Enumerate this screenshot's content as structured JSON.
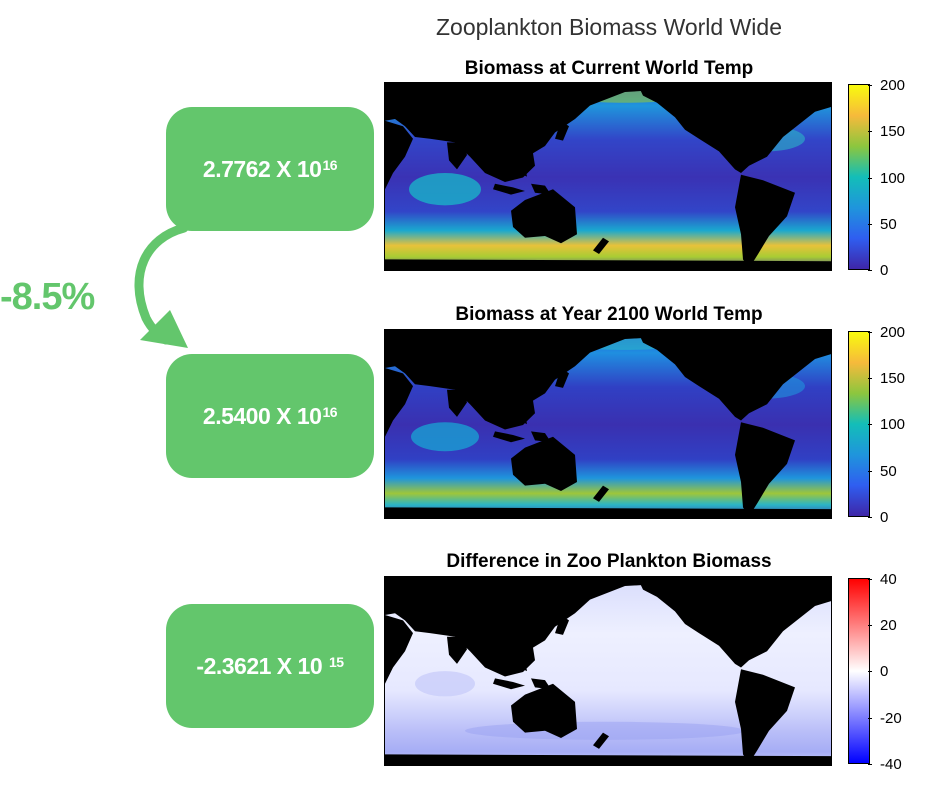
{
  "figure": {
    "title": "Zooplankton Biomass World Wide"
  },
  "panels": [
    {
      "title": "Biomass at Current World Temp",
      "colormap": "parula",
      "colorbar_ticks": [
        "200",
        "150",
        "100",
        "50",
        "0"
      ],
      "colorbar_range": [
        0,
        200
      ]
    },
    {
      "title": "Biomass at Year 2100 World Temp",
      "colormap": "parula",
      "colorbar_ticks": [
        "200",
        "150",
        "100",
        "50",
        "0"
      ],
      "colorbar_range": [
        0,
        200
      ]
    },
    {
      "title": "Difference in Zoo Plankton Biomass",
      "colormap": "blue-white-red",
      "colorbar_ticks": [
        "40",
        "20",
        "0",
        "-20",
        "-40"
      ],
      "colorbar_range": [
        -40,
        40
      ]
    }
  ],
  "values": [
    {
      "mantissa": "2.7762 X 10",
      "exponent": "16"
    },
    {
      "mantissa": "2.5400 X 10",
      "exponent": "16"
    },
    {
      "mantissa": "-2.3621 X 10 ",
      "exponent": "15"
    }
  ],
  "change": {
    "label": "-8.5%"
  },
  "colors": {
    "box_green": "#63c66c",
    "land": "#000000",
    "parula_low": "#3e26a8",
    "parula_mid": "#13beb8",
    "parula_high": "#f9fb0e",
    "diff_neg": "#0000ff",
    "diff_zero": "#ffffff",
    "diff_pos": "#ff0000"
  }
}
